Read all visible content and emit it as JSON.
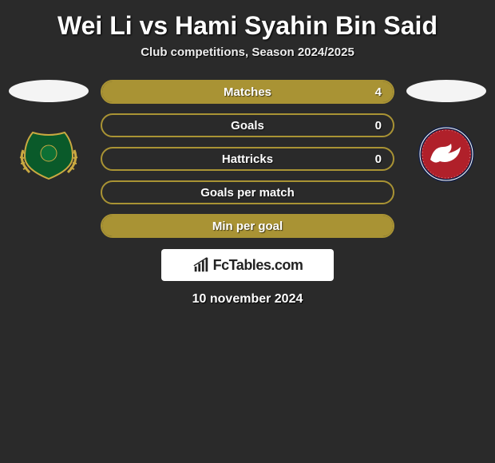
{
  "header": {
    "title": "Wei Li vs Hami Syahin Bin Said",
    "subtitle": "Club competitions, Season 2024/2025"
  },
  "stats": {
    "rows": [
      {
        "label": "Matches",
        "value_right": "4",
        "fill_side": "right",
        "fill_pct": 100
      },
      {
        "label": "Goals",
        "value_right": "0",
        "fill_side": "none",
        "fill_pct": 0
      },
      {
        "label": "Hattricks",
        "value_right": "0",
        "fill_side": "none",
        "fill_pct": 0
      },
      {
        "label": "Goals per match",
        "value_right": "",
        "fill_side": "none",
        "fill_pct": 0
      },
      {
        "label": "Min per goal",
        "value_right": "",
        "fill_side": "right",
        "fill_pct": 100
      }
    ],
    "colors": {
      "border": "#a99334",
      "fill": "#a99334",
      "text": "#ffffff"
    }
  },
  "brand": {
    "text": "FcTables.com"
  },
  "footer": {
    "date": "10 november 2024"
  },
  "badges": {
    "left": {
      "primary": "#0a5a2a",
      "secondary": "#c9a941",
      "shape": "shield-laurel"
    },
    "right": {
      "primary": "#b0202a",
      "secondary": "#122049",
      "accent": "#ffffff",
      "shape": "circle-lion"
    }
  }
}
